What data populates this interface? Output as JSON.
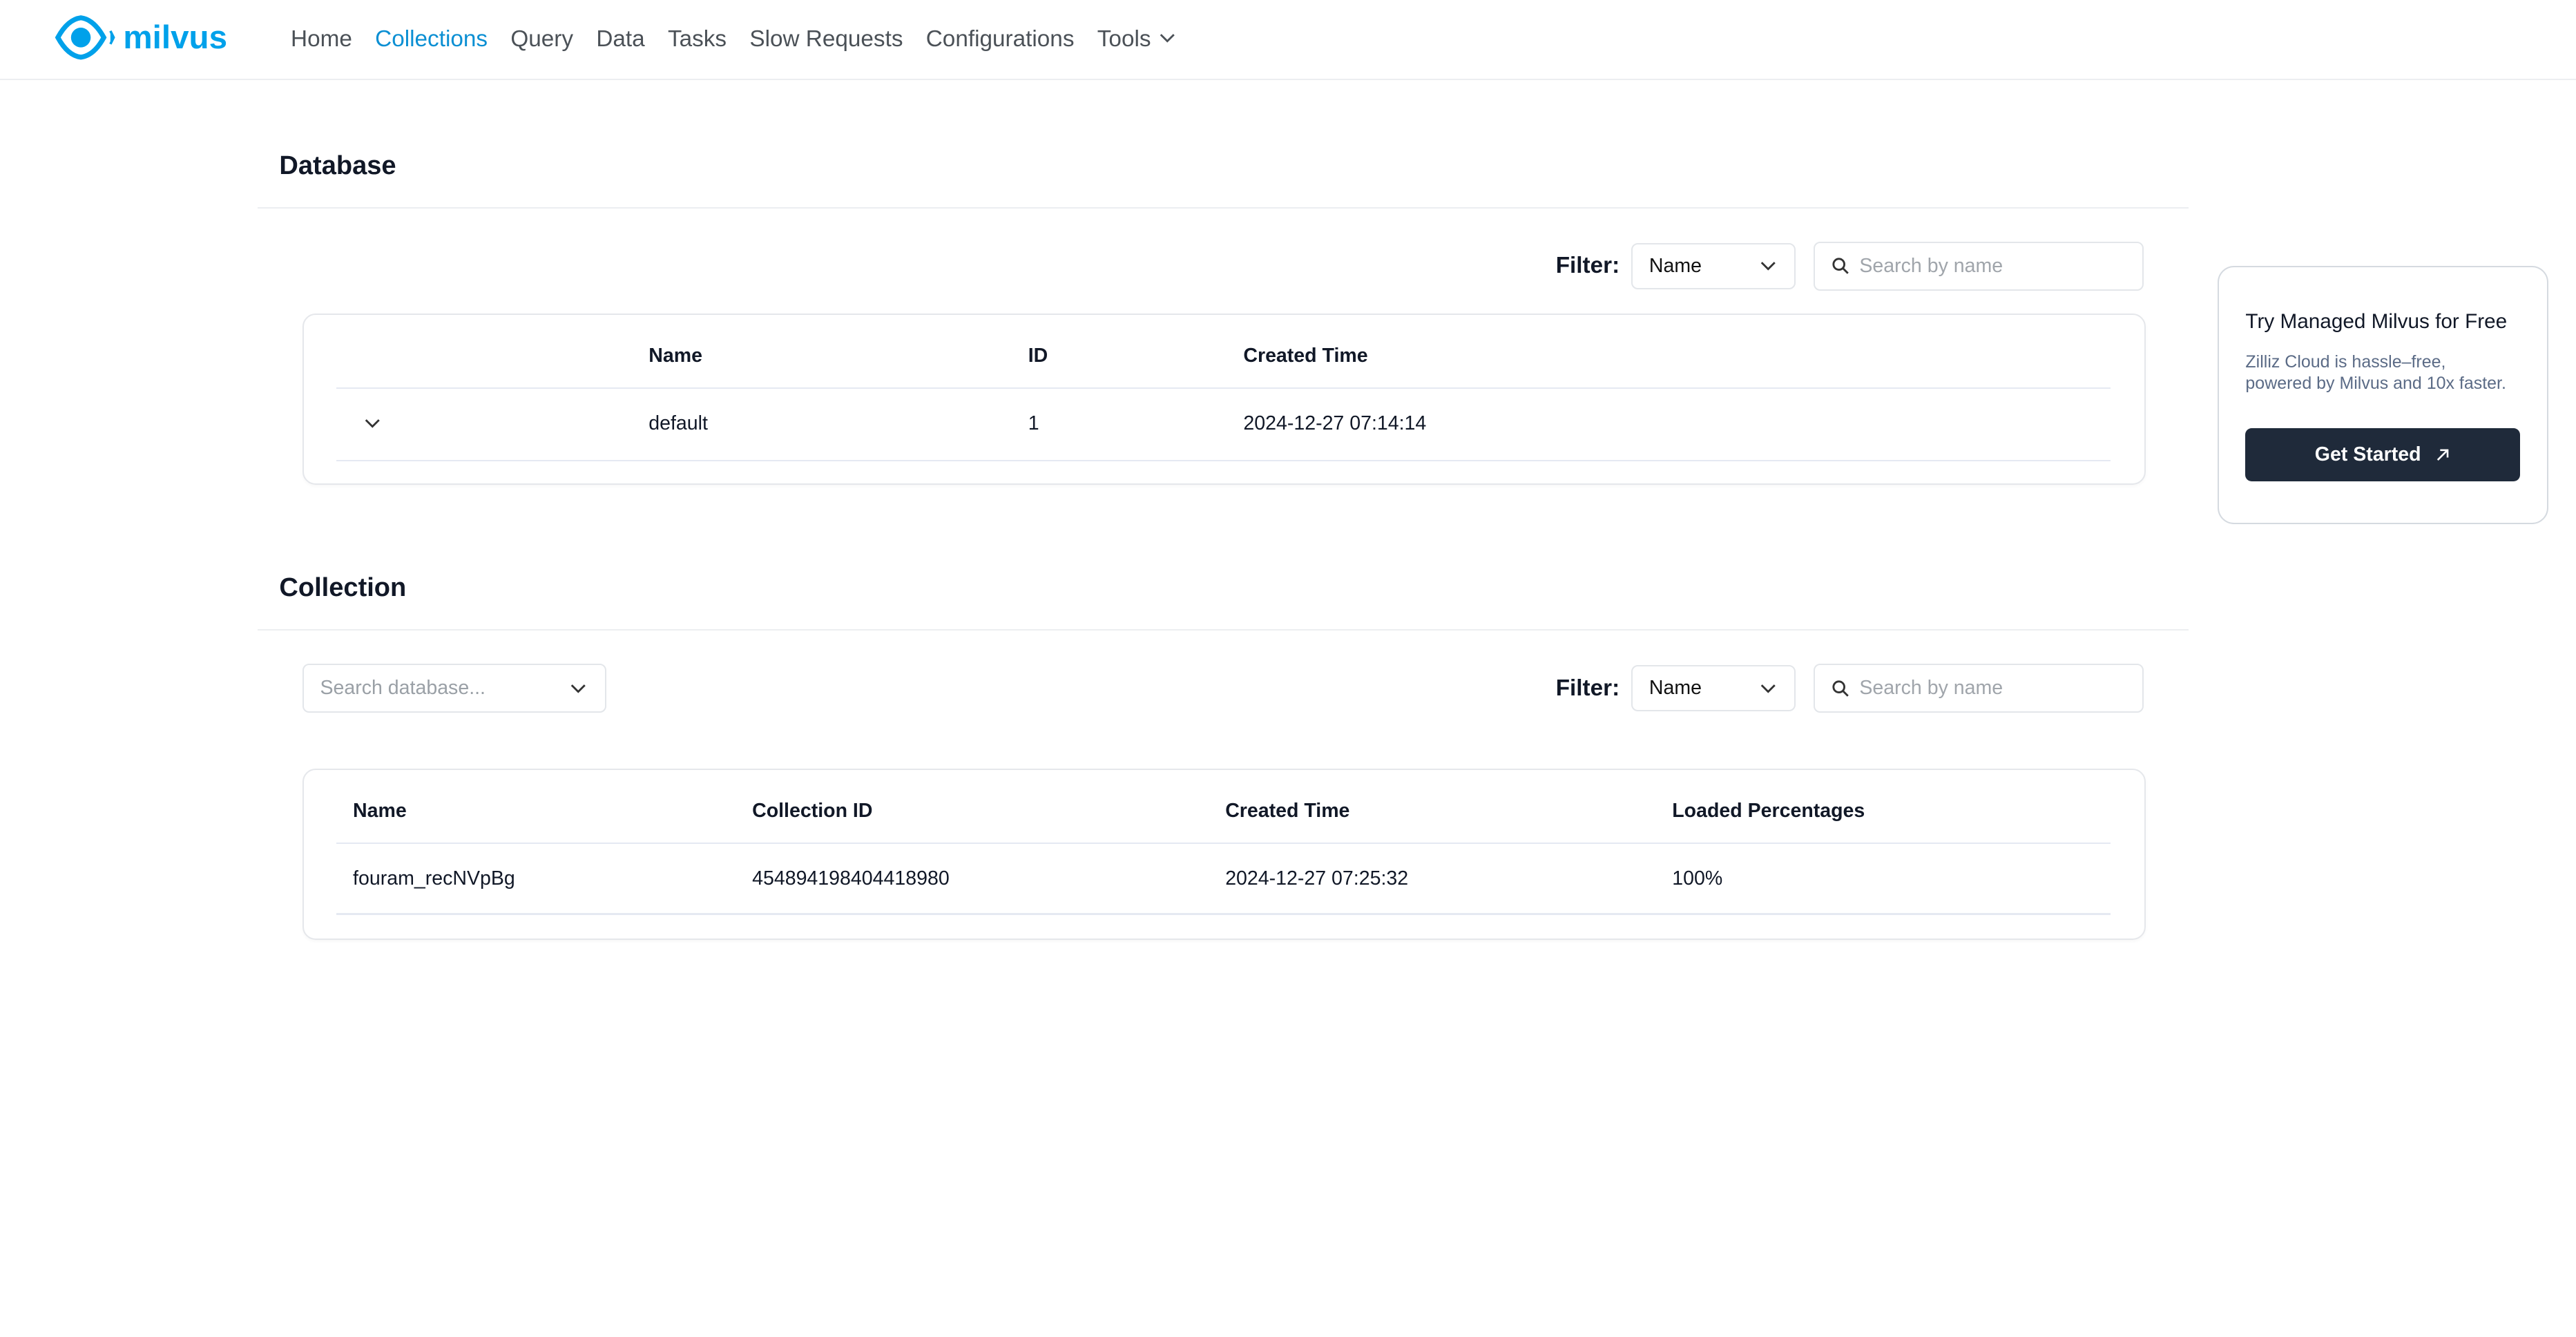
{
  "brand": {
    "name": "milvus",
    "color": "#00a1ea"
  },
  "nav": {
    "items": [
      "Home",
      "Collections",
      "Query",
      "Data",
      "Tasks",
      "Slow Requests",
      "Configurations",
      "Tools"
    ],
    "active": "Collections"
  },
  "database": {
    "title": "Database",
    "filter_label": "Filter:",
    "filter_value": "Name",
    "search_placeholder": "Search by name",
    "columns": [
      "Name",
      "ID",
      "Created Time"
    ],
    "rows": [
      {
        "name": "default",
        "id": "1",
        "created": "2024-12-27 07:14:14"
      }
    ]
  },
  "collection": {
    "title": "Collection",
    "db_select_placeholder": "Search database...",
    "filter_label": "Filter:",
    "filter_value": "Name",
    "search_placeholder": "Search by name",
    "columns": [
      "Name",
      "Collection ID",
      "Created Time",
      "Loaded Percentages"
    ],
    "rows": [
      {
        "name": "fouram_recNVpBg",
        "id": "454894198404418980",
        "created": "2024-12-27 07:25:32",
        "loaded": "100%"
      }
    ]
  },
  "promo": {
    "title": "Try Managed Milvus for Free",
    "desc_line1": "Zilliz Cloud is hassle–free,",
    "desc_line2": "powered by Milvus and 10x faster.",
    "button": "Get Started"
  }
}
